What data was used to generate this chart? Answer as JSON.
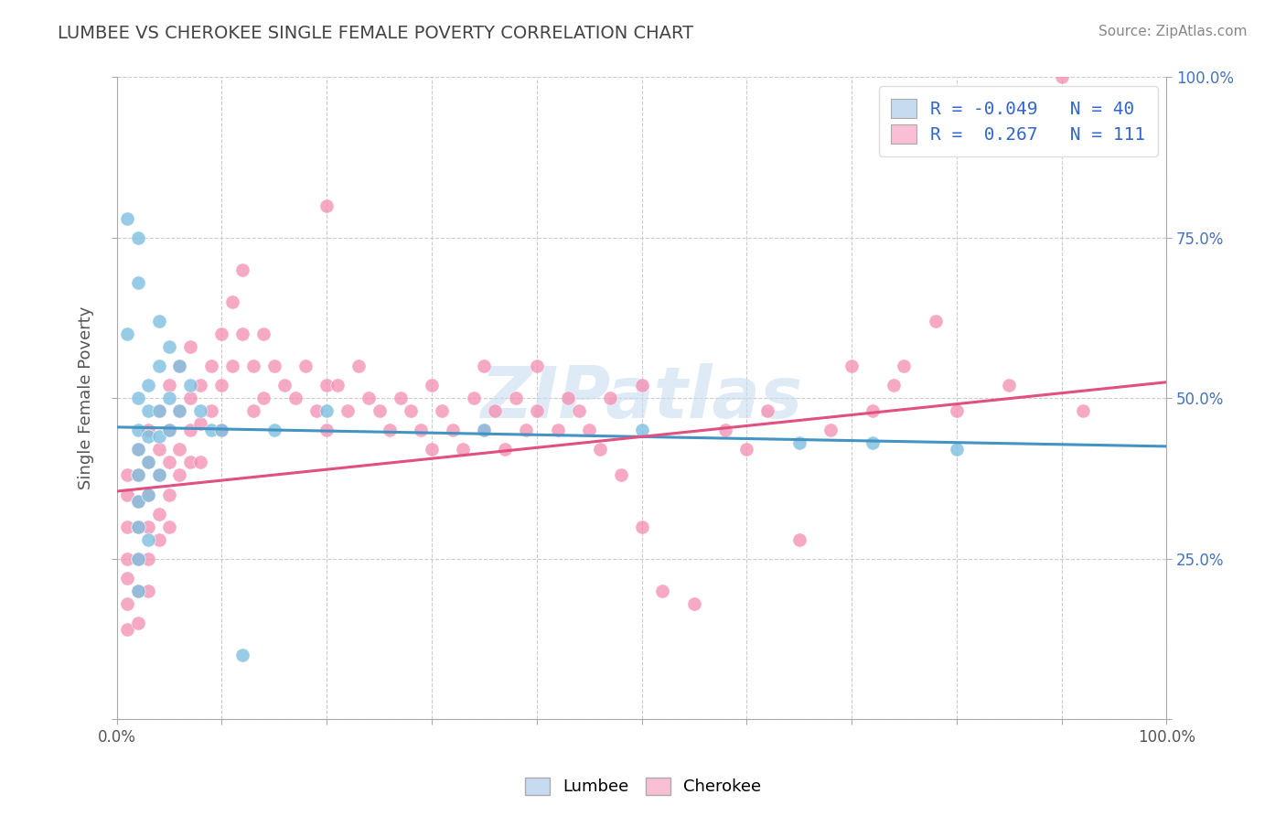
{
  "title": "LUMBEE VS CHEROKEE SINGLE FEMALE POVERTY CORRELATION CHART",
  "source_text": "Source: ZipAtlas.com",
  "ylabel": "Single Female Poverty",
  "xlim": [
    0,
    1
  ],
  "ylim": [
    0,
    1
  ],
  "x_ticks": [
    0.0,
    0.1,
    0.2,
    0.3,
    0.4,
    0.5,
    0.6,
    0.7,
    0.8,
    0.9,
    1.0
  ],
  "y_ticks": [
    0.0,
    0.25,
    0.5,
    0.75,
    1.0
  ],
  "y_tick_labels": [
    "",
    "25.0%",
    "50.0%",
    "75.0%",
    "100.0%"
  ],
  "lumbee_R": -0.049,
  "lumbee_N": 40,
  "cherokee_R": 0.267,
  "cherokee_N": 111,
  "lumbee_color": "#7fbfdf",
  "lumbee_color_light": "#c6dbef",
  "cherokee_color": "#f48cb0",
  "cherokee_color_light": "#fbbfd5",
  "lumbee_line_color": "#4393c3",
  "cherokee_line_color": "#e05080",
  "legend_text_color": "#3366cc",
  "watermark": "ZIPatlas",
  "background_color": "#ffffff",
  "grid_color": "#cccccc",
  "title_color": "#444444",
  "lumbee_line_start": 0.455,
  "lumbee_line_end": 0.425,
  "cherokee_line_start": 0.355,
  "cherokee_line_end": 0.525,
  "lumbee_scatter": [
    [
      0.01,
      0.6
    ],
    [
      0.01,
      0.78
    ],
    [
      0.02,
      0.75
    ],
    [
      0.02,
      0.68
    ],
    [
      0.02,
      0.5
    ],
    [
      0.02,
      0.45
    ],
    [
      0.02,
      0.42
    ],
    [
      0.02,
      0.38
    ],
    [
      0.02,
      0.34
    ],
    [
      0.02,
      0.3
    ],
    [
      0.02,
      0.25
    ],
    [
      0.02,
      0.2
    ],
    [
      0.03,
      0.52
    ],
    [
      0.03,
      0.48
    ],
    [
      0.03,
      0.44
    ],
    [
      0.03,
      0.4
    ],
    [
      0.03,
      0.35
    ],
    [
      0.03,
      0.28
    ],
    [
      0.04,
      0.62
    ],
    [
      0.04,
      0.55
    ],
    [
      0.04,
      0.48
    ],
    [
      0.04,
      0.44
    ],
    [
      0.04,
      0.38
    ],
    [
      0.05,
      0.58
    ],
    [
      0.05,
      0.5
    ],
    [
      0.05,
      0.45
    ],
    [
      0.06,
      0.55
    ],
    [
      0.06,
      0.48
    ],
    [
      0.07,
      0.52
    ],
    [
      0.08,
      0.48
    ],
    [
      0.09,
      0.45
    ],
    [
      0.1,
      0.45
    ],
    [
      0.12,
      0.1
    ],
    [
      0.15,
      0.45
    ],
    [
      0.2,
      0.48
    ],
    [
      0.35,
      0.45
    ],
    [
      0.5,
      0.45
    ],
    [
      0.65,
      0.43
    ],
    [
      0.72,
      0.43
    ],
    [
      0.8,
      0.42
    ]
  ],
  "cherokee_scatter": [
    [
      0.01,
      0.38
    ],
    [
      0.01,
      0.35
    ],
    [
      0.01,
      0.3
    ],
    [
      0.01,
      0.25
    ],
    [
      0.01,
      0.22
    ],
    [
      0.01,
      0.18
    ],
    [
      0.01,
      0.14
    ],
    [
      0.02,
      0.42
    ],
    [
      0.02,
      0.38
    ],
    [
      0.02,
      0.34
    ],
    [
      0.02,
      0.3
    ],
    [
      0.02,
      0.25
    ],
    [
      0.02,
      0.2
    ],
    [
      0.02,
      0.15
    ],
    [
      0.03,
      0.45
    ],
    [
      0.03,
      0.4
    ],
    [
      0.03,
      0.35
    ],
    [
      0.03,
      0.3
    ],
    [
      0.03,
      0.25
    ],
    [
      0.03,
      0.2
    ],
    [
      0.04,
      0.48
    ],
    [
      0.04,
      0.42
    ],
    [
      0.04,
      0.38
    ],
    [
      0.04,
      0.32
    ],
    [
      0.04,
      0.28
    ],
    [
      0.05,
      0.52
    ],
    [
      0.05,
      0.45
    ],
    [
      0.05,
      0.4
    ],
    [
      0.05,
      0.35
    ],
    [
      0.05,
      0.3
    ],
    [
      0.06,
      0.55
    ],
    [
      0.06,
      0.48
    ],
    [
      0.06,
      0.42
    ],
    [
      0.06,
      0.38
    ],
    [
      0.07,
      0.58
    ],
    [
      0.07,
      0.5
    ],
    [
      0.07,
      0.45
    ],
    [
      0.07,
      0.4
    ],
    [
      0.08,
      0.52
    ],
    [
      0.08,
      0.46
    ],
    [
      0.08,
      0.4
    ],
    [
      0.09,
      0.55
    ],
    [
      0.09,
      0.48
    ],
    [
      0.1,
      0.6
    ],
    [
      0.1,
      0.52
    ],
    [
      0.1,
      0.45
    ],
    [
      0.11,
      0.65
    ],
    [
      0.11,
      0.55
    ],
    [
      0.12,
      0.7
    ],
    [
      0.12,
      0.6
    ],
    [
      0.13,
      0.55
    ],
    [
      0.13,
      0.48
    ],
    [
      0.14,
      0.6
    ],
    [
      0.14,
      0.5
    ],
    [
      0.15,
      0.55
    ],
    [
      0.16,
      0.52
    ],
    [
      0.17,
      0.5
    ],
    [
      0.18,
      0.55
    ],
    [
      0.19,
      0.48
    ],
    [
      0.2,
      0.8
    ],
    [
      0.2,
      0.52
    ],
    [
      0.2,
      0.45
    ],
    [
      0.21,
      0.52
    ],
    [
      0.22,
      0.48
    ],
    [
      0.23,
      0.55
    ],
    [
      0.24,
      0.5
    ],
    [
      0.25,
      0.48
    ],
    [
      0.26,
      0.45
    ],
    [
      0.27,
      0.5
    ],
    [
      0.28,
      0.48
    ],
    [
      0.29,
      0.45
    ],
    [
      0.3,
      0.52
    ],
    [
      0.3,
      0.42
    ],
    [
      0.31,
      0.48
    ],
    [
      0.32,
      0.45
    ],
    [
      0.33,
      0.42
    ],
    [
      0.34,
      0.5
    ],
    [
      0.35,
      0.55
    ],
    [
      0.35,
      0.45
    ],
    [
      0.36,
      0.48
    ],
    [
      0.37,
      0.42
    ],
    [
      0.38,
      0.5
    ],
    [
      0.39,
      0.45
    ],
    [
      0.4,
      0.55
    ],
    [
      0.4,
      0.48
    ],
    [
      0.42,
      0.45
    ],
    [
      0.43,
      0.5
    ],
    [
      0.44,
      0.48
    ],
    [
      0.45,
      0.45
    ],
    [
      0.46,
      0.42
    ],
    [
      0.47,
      0.5
    ],
    [
      0.48,
      0.38
    ],
    [
      0.5,
      0.52
    ],
    [
      0.5,
      0.3
    ],
    [
      0.52,
      0.2
    ],
    [
      0.55,
      0.18
    ],
    [
      0.58,
      0.45
    ],
    [
      0.6,
      0.42
    ],
    [
      0.62,
      0.48
    ],
    [
      0.65,
      0.28
    ],
    [
      0.68,
      0.45
    ],
    [
      0.7,
      0.55
    ],
    [
      0.72,
      0.48
    ],
    [
      0.74,
      0.52
    ],
    [
      0.75,
      0.55
    ],
    [
      0.78,
      0.62
    ],
    [
      0.8,
      0.48
    ],
    [
      0.85,
      0.52
    ],
    [
      0.9,
      1.0
    ],
    [
      0.92,
      0.48
    ]
  ]
}
